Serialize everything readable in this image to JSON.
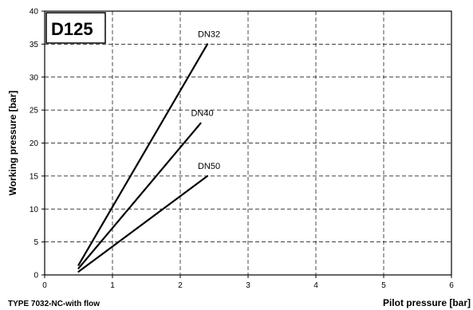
{
  "chart_data": {
    "type": "line",
    "badge": "D125",
    "xlabel": "Pilot pressure [bar]",
    "ylabel": "Working pressure [bar]",
    "subtitle": "TYPE 7032-NC-with flow",
    "xlim": [
      0,
      6
    ],
    "ylim": [
      0,
      40
    ],
    "xticks": [
      0,
      1,
      2,
      3,
      4,
      5,
      6
    ],
    "yticks": [
      0,
      5,
      10,
      15,
      20,
      25,
      30,
      35,
      40
    ],
    "grid": true,
    "series": [
      {
        "name": "DN32",
        "x": [
          0.5,
          2.4
        ],
        "y": [
          1.5,
          35
        ]
      },
      {
        "name": "DN40",
        "x": [
          0.5,
          2.3
        ],
        "y": [
          1.0,
          23
        ]
      },
      {
        "name": "DN50",
        "x": [
          0.5,
          2.4
        ],
        "y": [
          0.5,
          15
        ]
      }
    ]
  }
}
